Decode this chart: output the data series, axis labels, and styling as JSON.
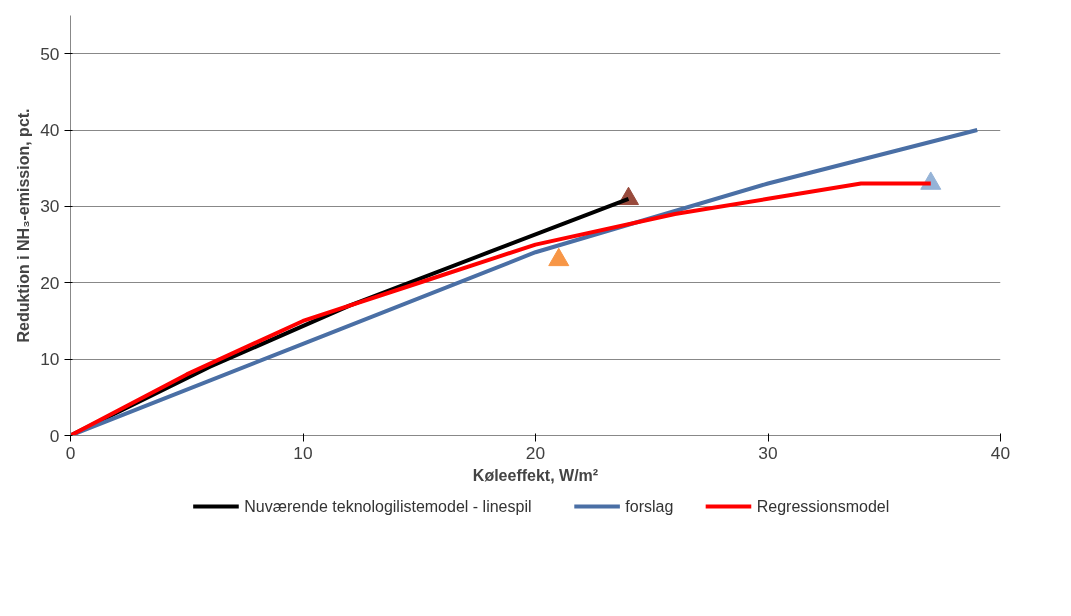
{
  "chart_data": {
    "type": "line",
    "xlabel": "Køleeffekt, W/m²",
    "ylabel": "Reduktion i NH₃-emission, pct.",
    "xlim": [
      0,
      40
    ],
    "ylim": [
      0,
      55
    ],
    "xticks": [
      0,
      10,
      20,
      30,
      40
    ],
    "yticks": [
      0,
      10,
      20,
      30,
      40,
      50
    ],
    "grid": "y",
    "legend": "bottom",
    "line_style": "solid",
    "marker": "none",
    "series": [
      {
        "name": "Nuværende teknologilistemodel - linespil",
        "color": "#000000",
        "x": [
          0,
          6,
          12,
          18,
          24
        ],
        "values": [
          0,
          9,
          17,
          24,
          31
        ]
      },
      {
        "name": "forslag",
        "color": "#4a6fa5",
        "x": [
          0,
          10,
          20,
          30,
          39
        ],
        "values": [
          0,
          12,
          24,
          33,
          40
        ]
      },
      {
        "name": "Regressionsmodel",
        "color": "#ff0000",
        "x": [
          0,
          5,
          10,
          15,
          20,
          26,
          30,
          34,
          37
        ],
        "values": [
          0,
          8,
          15,
          20,
          25,
          29,
          31,
          33,
          33
        ]
      },
      {
        "type": "scatter",
        "marker": "triangle",
        "color": "#984a3c",
        "x": [
          24
        ],
        "values": [
          31
        ]
      },
      {
        "type": "scatter",
        "marker": "triangle",
        "color": "#f79646",
        "x": [
          21
        ],
        "values": [
          23
        ]
      },
      {
        "type": "scatter",
        "marker": "triangle",
        "color": "#95b3d7",
        "x": [
          37
        ],
        "values": [
          33
        ]
      }
    ]
  }
}
